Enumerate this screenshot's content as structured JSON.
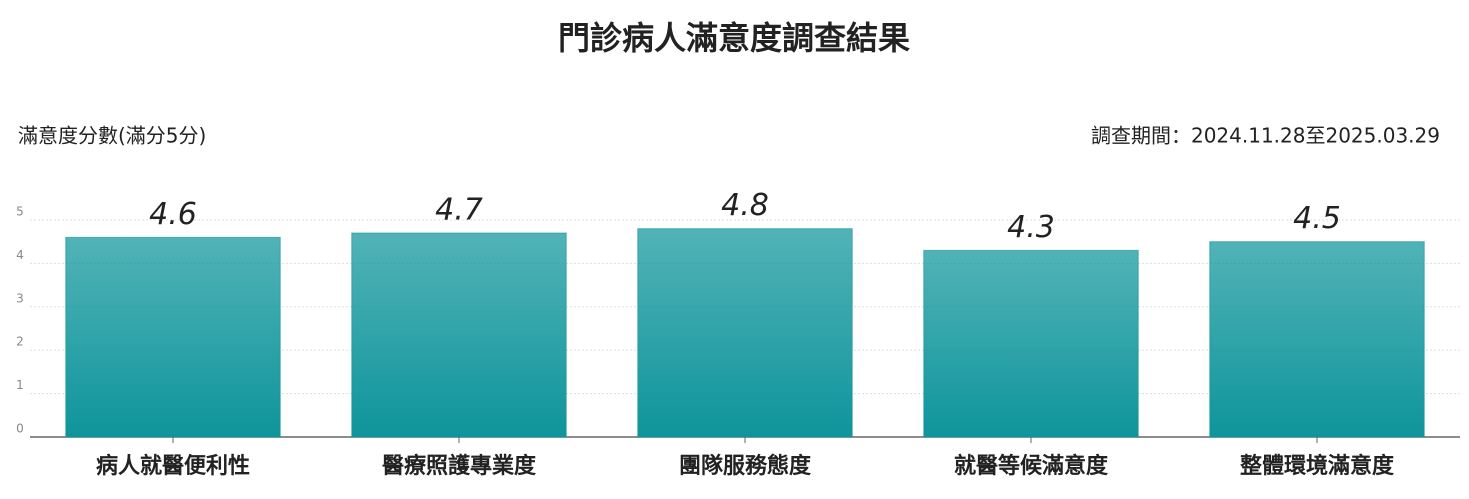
{
  "chart_data": {
    "type": "bar",
    "title": "門診病人滿意度調查結果",
    "y_label": "滿意度分數(滿分5分)",
    "subtitle": "調查期間：2024.11.28至2025.03.29",
    "categories": [
      "病人就醫便利性",
      "醫療照護專業度",
      "團隊服務態度",
      "就醫等候滿意度",
      "整體環境滿意度"
    ],
    "values": [
      4.6,
      4.7,
      4.8,
      4.3,
      4.5
    ],
    "color": "#0e959b",
    "ylim": [
      0,
      5
    ],
    "yticks": [
      0,
      1,
      2,
      3,
      4,
      5
    ],
    "grid": true
  }
}
